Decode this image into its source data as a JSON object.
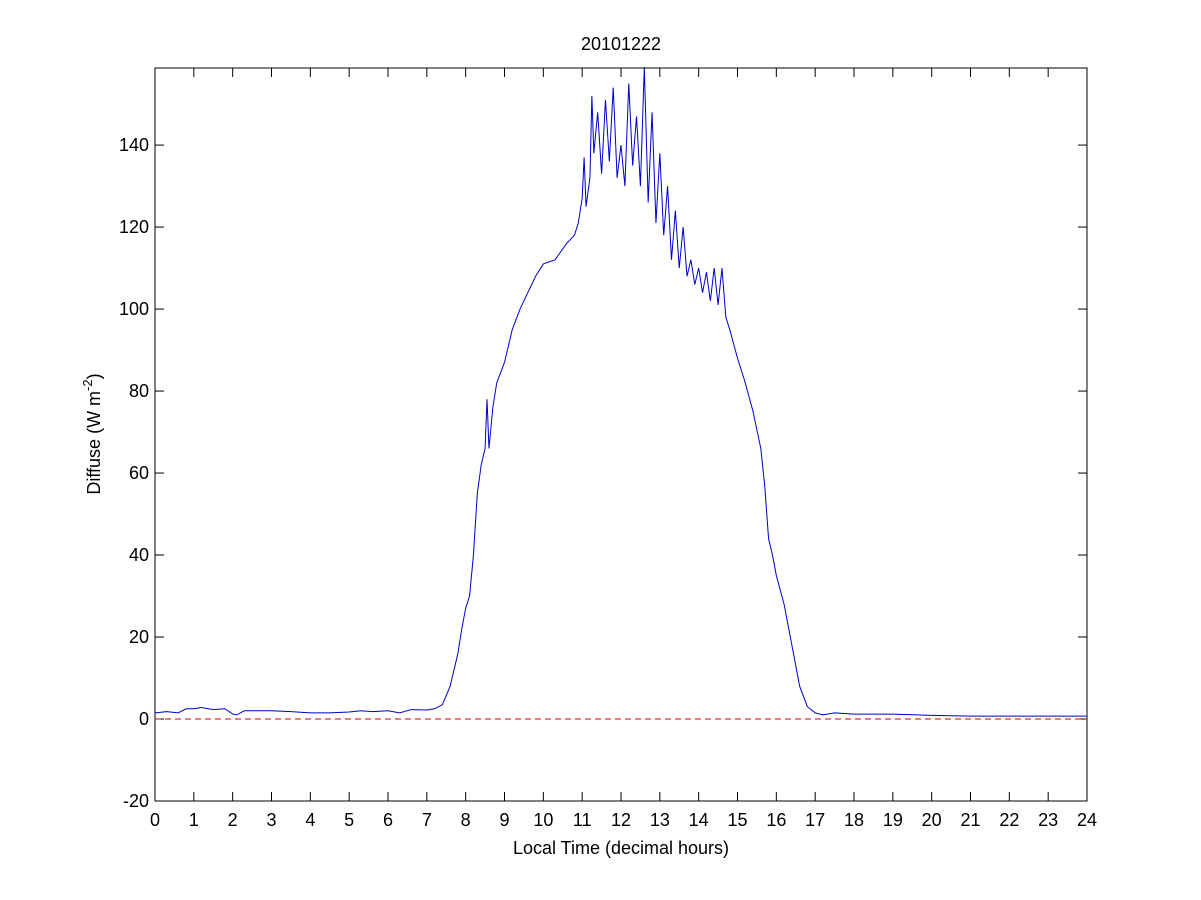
{
  "chart_data": {
    "type": "line",
    "title": "20101222",
    "xlabel": "Local Time (decimal hours)",
    "ylabel": [
      "Diffuse (W m",
      "-2",
      ")"
    ],
    "xlim": [
      0,
      24
    ],
    "ylim": [
      -20,
      158.8
    ],
    "xticks": [
      0,
      1,
      2,
      3,
      4,
      5,
      6,
      7,
      8,
      9,
      10,
      11,
      12,
      13,
      14,
      15,
      16,
      17,
      18,
      19,
      20,
      21,
      22,
      23,
      24
    ],
    "yticks": [
      -20,
      0,
      20,
      40,
      60,
      80,
      100,
      120,
      140
    ],
    "series": [
      {
        "color": "#0000cc",
        "dashed": false,
        "x": [
          0,
          0.3,
          0.6,
          0.8,
          1.0,
          1.2,
          1.5,
          1.8,
          2.0,
          2.1,
          2.3,
          2.6,
          3,
          3.5,
          4,
          4.5,
          5,
          5.3,
          5.6,
          6,
          6.3,
          6.6,
          7,
          7.2,
          7.4,
          7.6,
          7.8,
          7.9,
          8.0,
          8.1,
          8.2,
          8.3,
          8.4,
          8.5,
          8.55,
          8.6,
          8.7,
          8.8,
          9,
          9.2,
          9.4,
          9.6,
          9.8,
          10,
          10.3,
          10.6,
          10.8,
          10.9,
          11.0,
          11.05,
          11.1,
          11.2,
          11.25,
          11.3,
          11.4,
          11.5,
          11.6,
          11.7,
          11.8,
          11.9,
          12,
          12.1,
          12.2,
          12.3,
          12.4,
          12.5,
          12.6,
          12.7,
          12.8,
          12.9,
          13.0,
          13.1,
          13.2,
          13.3,
          13.4,
          13.5,
          13.6,
          13.7,
          13.8,
          13.9,
          14.0,
          14.1,
          14.2,
          14.3,
          14.4,
          14.5,
          14.6,
          14.7,
          14.8,
          15,
          15.2,
          15.4,
          15.6,
          15.7,
          15.8,
          15.9,
          16.0,
          16.2,
          16.4,
          16.6,
          16.8,
          17.0,
          17.2,
          17.5,
          18,
          18.5,
          19,
          20,
          21,
          22,
          23,
          24
        ],
        "values": [
          1.5,
          1.8,
          1.5,
          2.5,
          2.5,
          2.8,
          2.3,
          2.5,
          1.2,
          1.0,
          2.0,
          2.0,
          2.0,
          1.8,
          1.5,
          1.5,
          1.7,
          2.0,
          1.8,
          2.0,
          1.5,
          2.3,
          2.2,
          2.5,
          3.5,
          8,
          16,
          22,
          27,
          30,
          40,
          55,
          62,
          66,
          78,
          66,
          76,
          82,
          87,
          95,
          100,
          104,
          108,
          111,
          112,
          116,
          118,
          121,
          127,
          137,
          125,
          132,
          152,
          138,
          148,
          133,
          151,
          136,
          154,
          132,
          140,
          130,
          155,
          135,
          147,
          130,
          159,
          126,
          148,
          121,
          138,
          118,
          130,
          112,
          124,
          110,
          120,
          108,
          112,
          106,
          110,
          104,
          109,
          102,
          110,
          101,
          110,
          98,
          95,
          88,
          82,
          75,
          66,
          57,
          44,
          40,
          35,
          28,
          18,
          8,
          3,
          1.5,
          1.0,
          1.5,
          1.2,
          1.2,
          1.2,
          0.9,
          0.7,
          0.7,
          0.7,
          0.7
        ]
      },
      {
        "color": "#cc0000",
        "dashed": true,
        "x": [
          0,
          24
        ],
        "values": [
          0,
          0
        ]
      }
    ]
  }
}
